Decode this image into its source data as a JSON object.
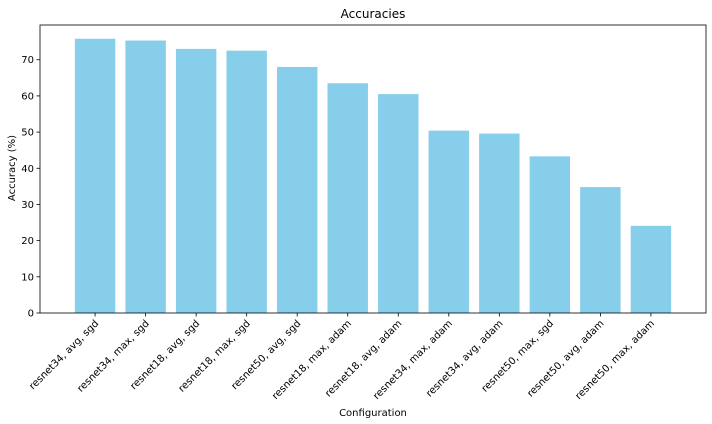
{
  "chart_data": {
    "type": "bar",
    "title": "Accuracies",
    "xlabel": "Configuration",
    "ylabel": "Accuracy (%)",
    "categories": [
      "resnet34, avg, sgd",
      "resnet34, max, sgd",
      "resnet18, avg, sgd",
      "resnet18, max, sgd",
      "resnet50, avg, sgd",
      "resnet18, max, adam",
      "resnet18, avg, adam",
      "resnet34, max, adam",
      "resnet34, avg, adam",
      "resnet50, max, sgd",
      "resnet50, avg, adam",
      "resnet50, max, adam"
    ],
    "values": [
      75.8,
      75.3,
      73.0,
      72.5,
      68.0,
      63.5,
      60.5,
      50.4,
      49.6,
      43.3,
      34.8,
      24.1
    ],
    "ylim": [
      0,
      79.6
    ],
    "yticks": [
      0,
      10,
      20,
      30,
      40,
      50,
      60,
      70
    ],
    "bar_color": "#87ceeb",
    "grid": false
  }
}
